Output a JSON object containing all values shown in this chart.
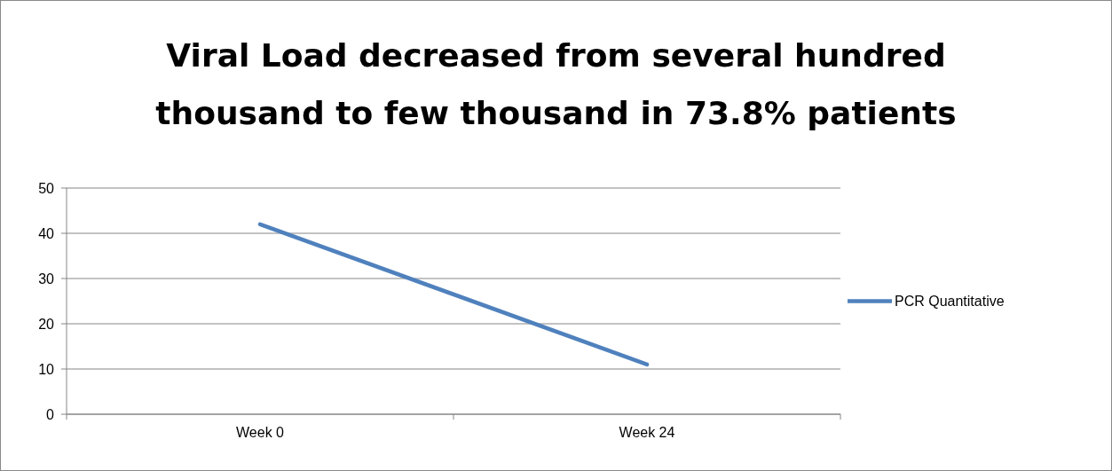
{
  "chart_data": {
    "type": "line",
    "title": "Viral Load decreased from several hundred thousand to few thousand in 73.8% patients",
    "categories": [
      "Week 0",
      "Week 24"
    ],
    "series": [
      {
        "name": "PCR Quantitative",
        "color": "#4f81bd",
        "values": [
          42,
          11
        ]
      }
    ],
    "ylim": [
      0,
      50
    ],
    "yticks": [
      0,
      10,
      20,
      30,
      40,
      50
    ],
    "grid": "y",
    "legend": "right",
    "marker": "none",
    "line_style": "solid"
  }
}
